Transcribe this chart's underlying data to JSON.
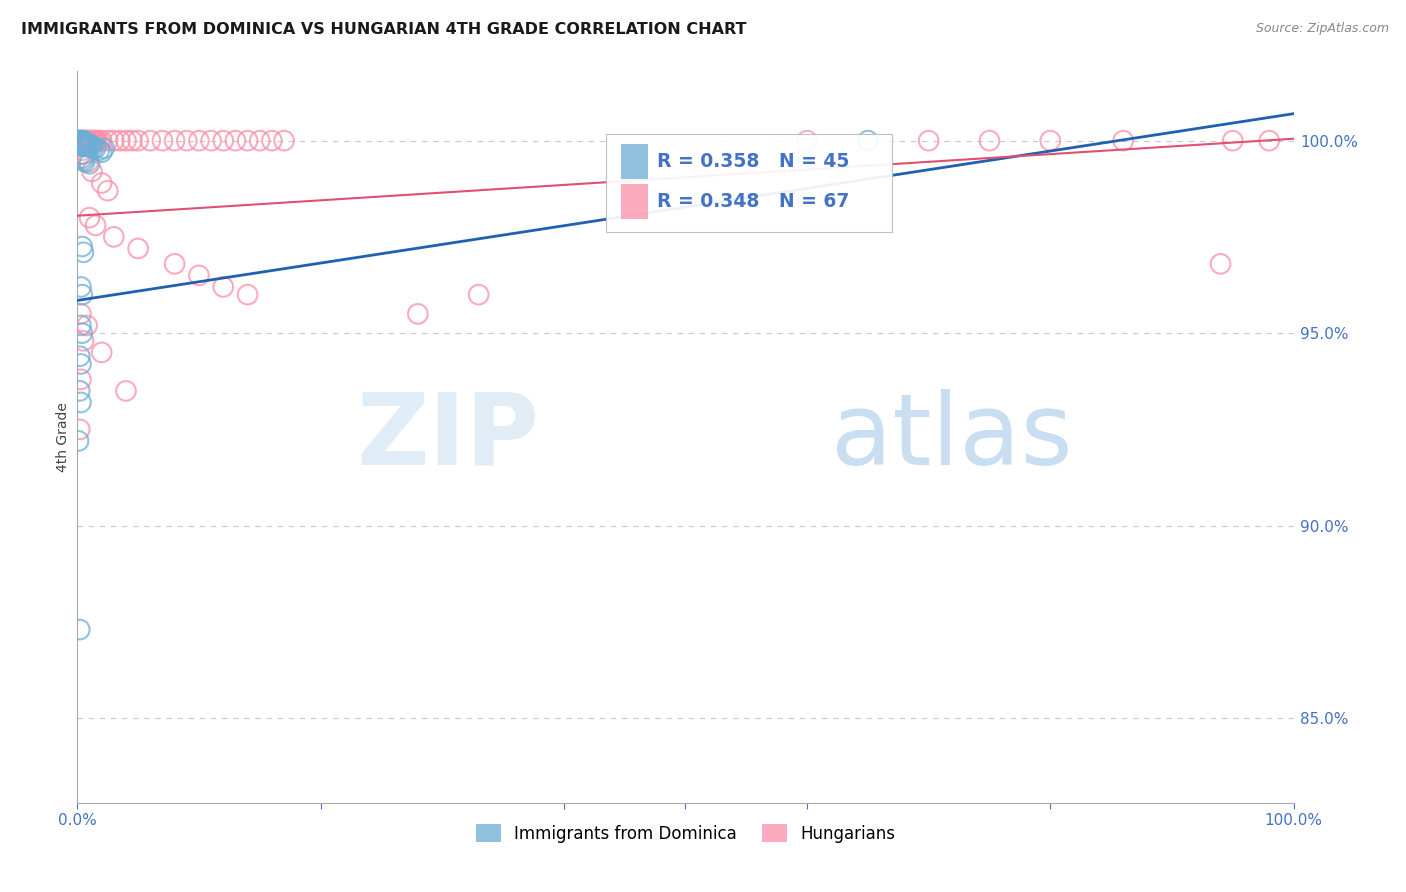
{
  "title": "IMMIGRANTS FROM DOMINICA VS HUNGARIAN 4TH GRADE CORRELATION CHART",
  "source": "Source: ZipAtlas.com",
  "ylabel": "4th Grade",
  "ytick_labels": [
    "85.0%",
    "90.0%",
    "95.0%",
    "100.0%"
  ],
  "ytick_values": [
    0.85,
    0.9,
    0.95,
    1.0
  ],
  "xmin": 0.0,
  "xmax": 1.0,
  "ymin": 0.828,
  "ymax": 1.018,
  "legend_blue_r": "R = 0.358",
  "legend_blue_n": "N = 45",
  "legend_pink_r": "R = 0.348",
  "legend_pink_n": "N = 67",
  "blue_color": "#6baed6",
  "pink_color": "#fc8fa8",
  "blue_line_color": "#2060b0",
  "pink_line_color": "#e05070",
  "blue_scatter": [
    [
      0.001,
      1.0
    ],
    [
      0.002,
      1.0
    ],
    [
      0.002,
      0.9995
    ],
    [
      0.003,
      1.0
    ],
    [
      0.003,
      0.9995
    ],
    [
      0.003,
      0.999
    ],
    [
      0.004,
      1.0
    ],
    [
      0.004,
      0.9995
    ],
    [
      0.004,
      0.999
    ],
    [
      0.004,
      0.9985
    ],
    [
      0.005,
      1.0
    ],
    [
      0.005,
      0.9995
    ],
    [
      0.005,
      0.999
    ],
    [
      0.006,
      0.9995
    ],
    [
      0.006,
      0.999
    ],
    [
      0.007,
      0.999
    ],
    [
      0.007,
      0.9985
    ],
    [
      0.008,
      0.9985
    ],
    [
      0.009,
      0.999
    ],
    [
      0.01,
      0.9985
    ],
    [
      0.011,
      0.999
    ],
    [
      0.012,
      0.9985
    ],
    [
      0.013,
      0.998
    ],
    [
      0.015,
      0.998
    ],
    [
      0.018,
      0.9975
    ],
    [
      0.02,
      0.997
    ],
    [
      0.022,
      0.998
    ],
    [
      0.003,
      0.9965
    ],
    [
      0.004,
      0.9955
    ],
    [
      0.005,
      0.995
    ],
    [
      0.006,
      0.9945
    ],
    [
      0.01,
      0.994
    ],
    [
      0.004,
      0.9725
    ],
    [
      0.005,
      0.971
    ],
    [
      0.003,
      0.962
    ],
    [
      0.004,
      0.96
    ],
    [
      0.003,
      0.952
    ],
    [
      0.004,
      0.95
    ],
    [
      0.002,
      0.944
    ],
    [
      0.003,
      0.942
    ],
    [
      0.002,
      0.935
    ],
    [
      0.003,
      0.932
    ],
    [
      0.001,
      0.922
    ],
    [
      0.002,
      0.873
    ],
    [
      0.65,
      1.0
    ]
  ],
  "pink_scatter": [
    [
      0.001,
      1.0
    ],
    [
      0.002,
      1.0
    ],
    [
      0.003,
      1.0
    ],
    [
      0.004,
      1.0
    ],
    [
      0.005,
      1.0
    ],
    [
      0.006,
      1.0
    ],
    [
      0.007,
      1.0
    ],
    [
      0.008,
      1.0
    ],
    [
      0.009,
      1.0
    ],
    [
      0.01,
      1.0
    ],
    [
      0.011,
      1.0
    ],
    [
      0.012,
      1.0
    ],
    [
      0.013,
      1.0
    ],
    [
      0.014,
      1.0
    ],
    [
      0.015,
      1.0
    ],
    [
      0.016,
      1.0
    ],
    [
      0.018,
      1.0
    ],
    [
      0.02,
      1.0
    ],
    [
      0.025,
      1.0
    ],
    [
      0.03,
      1.0
    ],
    [
      0.035,
      1.0
    ],
    [
      0.04,
      1.0
    ],
    [
      0.045,
      1.0
    ],
    [
      0.05,
      1.0
    ],
    [
      0.06,
      1.0
    ],
    [
      0.07,
      1.0
    ],
    [
      0.08,
      1.0
    ],
    [
      0.09,
      1.0
    ],
    [
      0.1,
      1.0
    ],
    [
      0.11,
      1.0
    ],
    [
      0.12,
      1.0
    ],
    [
      0.13,
      1.0
    ],
    [
      0.14,
      1.0
    ],
    [
      0.15,
      1.0
    ],
    [
      0.16,
      1.0
    ],
    [
      0.17,
      1.0
    ],
    [
      0.6,
      1.0
    ],
    [
      0.7,
      1.0
    ],
    [
      0.75,
      1.0
    ],
    [
      0.8,
      1.0
    ],
    [
      0.86,
      1.0
    ],
    [
      0.95,
      1.0
    ],
    [
      0.98,
      1.0
    ],
    [
      0.004,
      0.9975
    ],
    [
      0.005,
      0.9965
    ],
    [
      0.009,
      0.9945
    ],
    [
      0.012,
      0.992
    ],
    [
      0.02,
      0.989
    ],
    [
      0.025,
      0.987
    ],
    [
      0.01,
      0.98
    ],
    [
      0.015,
      0.978
    ],
    [
      0.03,
      0.975
    ],
    [
      0.05,
      0.972
    ],
    [
      0.08,
      0.968
    ],
    [
      0.1,
      0.965
    ],
    [
      0.12,
      0.962
    ],
    [
      0.14,
      0.96
    ],
    [
      0.003,
      0.955
    ],
    [
      0.008,
      0.952
    ],
    [
      0.005,
      0.948
    ],
    [
      0.02,
      0.945
    ],
    [
      0.28,
      0.955
    ],
    [
      0.33,
      0.96
    ],
    [
      0.003,
      0.938
    ],
    [
      0.04,
      0.935
    ],
    [
      0.002,
      0.925
    ],
    [
      0.94,
      0.968
    ]
  ],
  "blue_trendline_x": [
    0.0,
    1.0
  ],
  "blue_trendline_y": [
    0.9585,
    1.007
  ],
  "pink_trendline_x": [
    0.0,
    1.0
  ],
  "pink_trendline_y": [
    0.9805,
    1.0005
  ],
  "watermark_zip": "ZIP",
  "watermark_atlas": "atlas",
  "background_color": "#ffffff",
  "grid_color": "#c8c8c8",
  "tick_color": "#4472c4",
  "label_color": "#4472c4",
  "title_color": "#1a1a1a",
  "source_color": "#888888",
  "ylabel_color": "#444444"
}
